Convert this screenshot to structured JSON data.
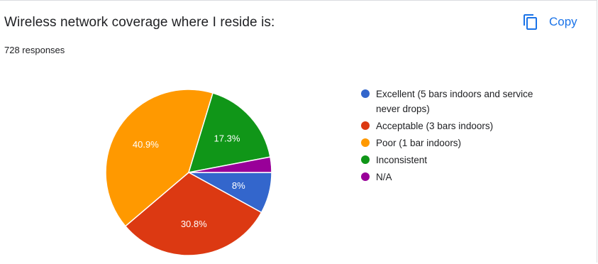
{
  "question": {
    "title": "Wireless network coverage where I reside is:",
    "responses": "728 responses"
  },
  "toolbar": {
    "copy_label": "Copy",
    "copy_icon": "copy-icon"
  },
  "colors": {
    "excellent": "#3366cc",
    "acceptable": "#dc3912",
    "poor": "#ff9900",
    "inconsistent": "#109618",
    "na": "#990099"
  },
  "chart_data": {
    "type": "pie",
    "title": "",
    "categories": [
      "Excellent (5 bars indoors and service never drops)",
      "Acceptable (3 bars indoors)",
      "Poor (1 bar indoors)",
      "Inconsistent",
      "N/A"
    ],
    "values": [
      8,
      30.8,
      40.9,
      17.3,
      3.0
    ],
    "slice_labels": [
      "8%",
      "30.8%",
      "40.9%",
      "17.3%",
      ""
    ],
    "colors": [
      "#3366cc",
      "#dc3912",
      "#ff9900",
      "#109618",
      "#990099"
    ],
    "legend_position": "right"
  }
}
